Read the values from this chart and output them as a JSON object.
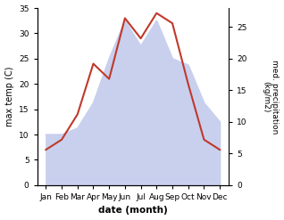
{
  "months": [
    "Jan",
    "Feb",
    "Mar",
    "Apr",
    "May",
    "Jun",
    "Jul",
    "Aug",
    "Sep",
    "Oct",
    "Nov",
    "Dec"
  ],
  "temperature": [
    7.0,
    9.0,
    14.0,
    24.0,
    21.0,
    33.0,
    29.0,
    34.0,
    32.0,
    20.0,
    9.0,
    7.0
  ],
  "precipitation": [
    8.0,
    8.0,
    9.0,
    13.0,
    20.0,
    26.0,
    22.0,
    26.0,
    20.0,
    19.0,
    13.0,
    10.0
  ],
  "temp_color": "#c0392b",
  "precip_fill_color": "#c8d0ee",
  "temp_ylim": [
    0,
    35
  ],
  "precip_ylim": [
    0,
    28
  ],
  "temp_yticks": [
    0,
    5,
    10,
    15,
    20,
    25,
    30,
    35
  ],
  "precip_yticks": [
    0,
    5,
    10,
    15,
    20,
    25
  ],
  "ylabel_left": "max temp (C)",
  "ylabel_right": "med. precipitation\n(kg/m2)",
  "xlabel": "date (month)",
  "figsize": [
    3.18,
    2.47
  ],
  "dpi": 100
}
